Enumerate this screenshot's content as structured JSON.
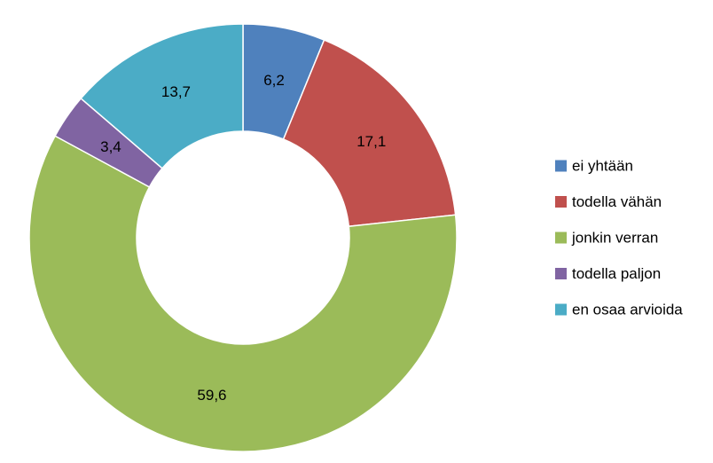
{
  "chart_data": {
    "type": "pie",
    "variant": "donut",
    "title": "",
    "categories": [
      "ei yhtään",
      "todella vähän",
      "jonkin verran",
      "todella paljon",
      "en osaa arvioida"
    ],
    "values": [
      6.2,
      17.1,
      59.6,
      3.4,
      13.7
    ],
    "value_labels": [
      "6,2",
      "17,1",
      "59,6",
      "3,4",
      "13,7"
    ],
    "colors": [
      "#4F81BD",
      "#C0504D",
      "#9BBB59",
      "#8064A2",
      "#4BACC6"
    ],
    "legend": "right"
  }
}
